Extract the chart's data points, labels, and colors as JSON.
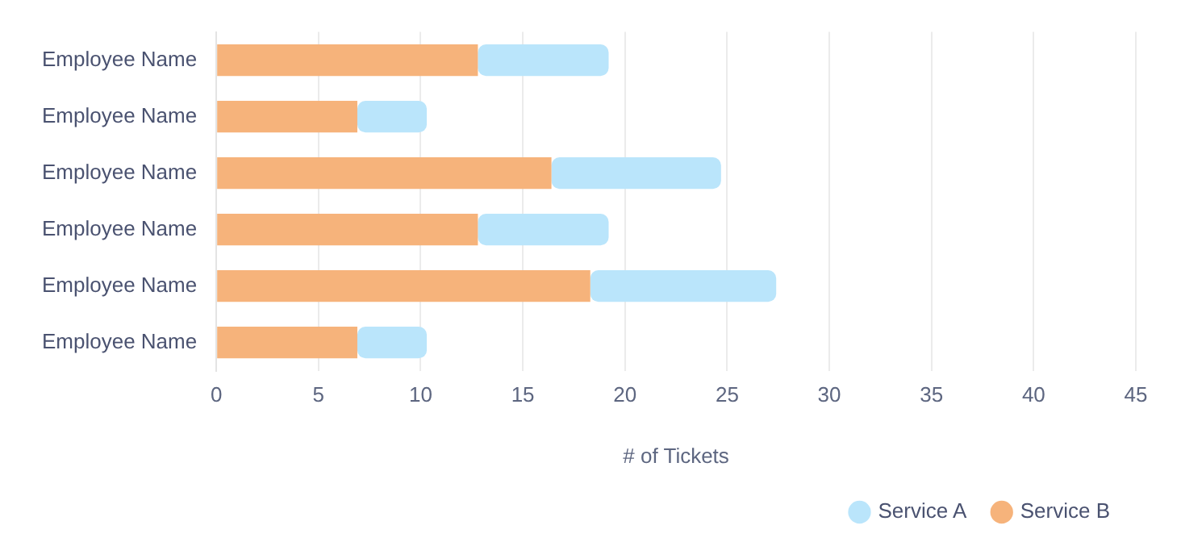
{
  "chart_data": {
    "type": "bar",
    "orientation": "horizontal",
    "stacked": true,
    "categories": [
      "Employee Name",
      "Employee Name",
      "Employee Name",
      "Employee Name",
      "Employee Name",
      "Employee Name"
    ],
    "series": [
      {
        "name": "Service B",
        "color": "#f6b37b",
        "values": [
          12.8,
          6.9,
          16.4,
          12.8,
          18.3,
          6.9
        ]
      },
      {
        "name": "Service A",
        "color": "#bae5fb",
        "values": [
          6.4,
          3.4,
          8.3,
          6.4,
          9.1,
          3.4
        ]
      }
    ],
    "xlabel": "# of Tickets",
    "xlim": [
      0,
      45
    ],
    "xticks": [
      0,
      5,
      10,
      15,
      20,
      25,
      30,
      35,
      40,
      45
    ],
    "grid": "x",
    "legend": "bottom right"
  }
}
